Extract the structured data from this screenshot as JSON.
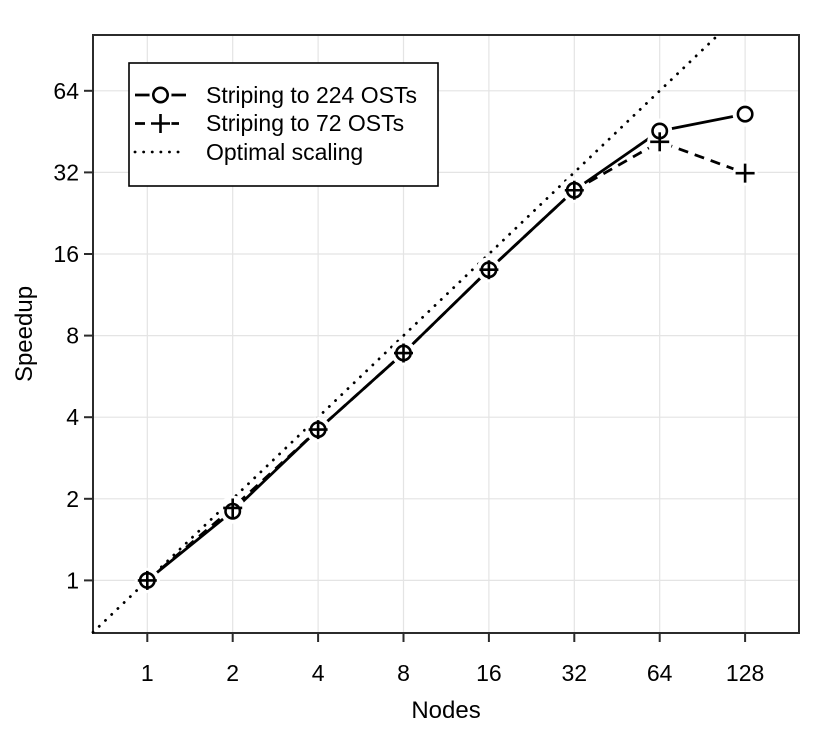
{
  "figure": {
    "background": "#ffffff"
  },
  "chart_data": {
    "type": "line",
    "title": "",
    "xlabel": "Nodes",
    "ylabel": "Speedup",
    "x_scale": "log2",
    "y_scale": "log2",
    "x_ticks": [
      1,
      2,
      4,
      8,
      16,
      32,
      64,
      128
    ],
    "y_ticks": [
      1,
      2,
      4,
      8,
      16,
      32,
      64
    ],
    "xlim": [
      0.64,
      103
    ],
    "ylim": [
      0.64,
      103
    ],
    "grid": true,
    "legend_position": "top-left",
    "x": [
      1,
      2,
      4,
      8,
      16,
      32,
      64,
      128
    ],
    "series": [
      {
        "name": "Striping to 224 OSTs",
        "line": "solid",
        "marker": "circle",
        "values": [
          1,
          1.8,
          3.6,
          6.9,
          14,
          27.5,
          45.5,
          52.5
        ]
      },
      {
        "name": "Striping to 72 OSTs",
        "line": "dashed",
        "marker": "plus",
        "values": [
          1,
          1.85,
          3.6,
          6.9,
          14,
          27.5,
          41.5,
          31.8
        ]
      },
      {
        "name": "Optimal scaling",
        "line": "dotted",
        "marker": "none",
        "rule": "y_equals_x"
      }
    ],
    "colors": {
      "line": "#000000",
      "grid": "#e4e4e4",
      "box": "#2b2b2b",
      "text": "#000000",
      "background": "#ffffff"
    }
  }
}
